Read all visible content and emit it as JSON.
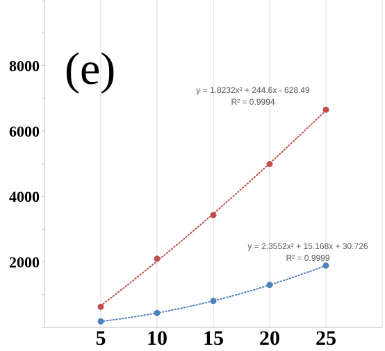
{
  "chart_data": {
    "type": "scatter",
    "panel_label": "(e)",
    "x": [
      5,
      10,
      15,
      20,
      25
    ],
    "xlim": [
      0,
      30
    ],
    "ylim": [
      0,
      10000
    ],
    "x_ticks": [
      "5",
      "10",
      "15",
      "20",
      "25"
    ],
    "y_ticks": [
      {
        "value": 2000,
        "label": "2000"
      },
      {
        "value": 4000,
        "label": "4000"
      },
      {
        "value": 6000,
        "label": "6000"
      },
      {
        "value": 8000,
        "label": "8000"
      }
    ],
    "minor_tick_step": 1000,
    "grid": "vertical",
    "series": [
      {
        "values": [
          630,
          2100,
          3430,
          4990,
          6650
        ],
        "color": "#C0504D",
        "trendline": "polynomial-2",
        "equation": "y = 1.8232x² + 244.6x - 628.49",
        "r2": "R² = 0.9994"
      },
      {
        "values": [
          185,
          440,
          810,
          1300,
          1890
        ],
        "color": "#4F81BD",
        "trendline": "polynomial-2",
        "equation": "y = 2.3552x² + 15.168x + 30.726",
        "r2": "R² = 0.9999"
      }
    ]
  }
}
